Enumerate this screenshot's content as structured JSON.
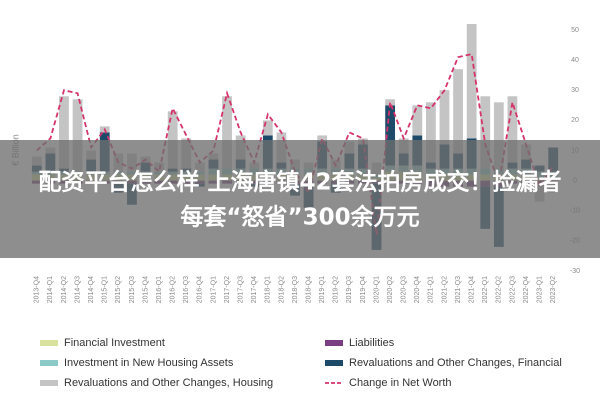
{
  "chart_data": {
    "type": "bar",
    "y_label": "€ Billion",
    "categories": [
      "2013-Q4",
      "2014-Q1",
      "2014-Q2",
      "2014-Q3",
      "2014-Q4",
      "2015-Q1",
      "2015-Q2",
      "2015-Q3",
      "2015-Q4",
      "2016-Q1",
      "2016-Q2",
      "2016-Q3",
      "2016-Q4",
      "2017-Q1",
      "2017-Q2",
      "2017-Q3",
      "2017-Q4",
      "2018-Q1",
      "2018-Q2",
      "2018-Q3",
      "2018-Q4",
      "2019-Q1",
      "2019-Q2",
      "2019-Q3",
      "2019-Q4",
      "2020-Q1",
      "2020-Q2",
      "2020-Q3",
      "2020-Q4",
      "2021-Q1",
      "2021-Q2",
      "2021-Q3",
      "2021-Q4",
      "2022-Q1",
      "2022-Q2",
      "2022-Q3",
      "2022-Q4",
      "2023-Q1",
      "2023-Q2"
    ],
    "series": [
      {
        "name": "Financial Investment",
        "color": "#d8e29c",
        "type": "bar",
        "values": [
          2,
          2,
          2,
          2,
          2,
          2,
          2,
          2,
          2,
          2,
          2,
          2,
          2,
          2,
          2,
          2,
          2,
          2,
          2,
          2,
          2,
          2,
          2,
          2,
          2,
          1,
          3,
          3,
          3,
          2,
          2,
          2,
          2,
          2,
          2,
          2,
          2,
          1,
          1
        ]
      },
      {
        "name": "Liabilities",
        "color": "#7a3f82",
        "type": "bar",
        "values": [
          -1,
          -1,
          -1,
          -1,
          -1,
          -1,
          -1,
          -1,
          -1,
          -1,
          -1,
          -1,
          -1,
          -1,
          -1,
          -1,
          -1,
          -1,
          -1,
          -1,
          -1,
          -1,
          -1,
          -1,
          -1,
          -1,
          -1,
          -1,
          -1,
          -2,
          -2,
          -2,
          -2,
          -2,
          -2,
          -1,
          -1,
          -1,
          -1
        ]
      },
      {
        "name": "Investment in New Housing Assets",
        "color": "#8ccac7",
        "type": "bar",
        "values": [
          1,
          1,
          1,
          1,
          1,
          1,
          1,
          1,
          1,
          1,
          1,
          1,
          1,
          2,
          2,
          2,
          2,
          2,
          2,
          2,
          2,
          2,
          2,
          2,
          2,
          1,
          2,
          2,
          2,
          2,
          2,
          2,
          2,
          2,
          2,
          2,
          2,
          2,
          2
        ]
      },
      {
        "name": "Revaluations and Other Changes, Financial",
        "color": "#1c4a68",
        "type": "bar",
        "values": [
          2,
          6,
          1,
          0,
          4,
          13,
          -3,
          -7,
          3,
          0,
          1,
          1,
          -1,
          3,
          0,
          3,
          -1,
          11,
          2,
          -4,
          -8,
          9,
          -3,
          5,
          8,
          -22,
          20,
          4,
          10,
          2,
          8,
          5,
          10,
          -14,
          -20,
          2,
          3,
          2,
          8
        ]
      },
      {
        "name": "Revaluations and Other Changes, Housing",
        "color": "#c4c4c4",
        "type": "bar",
        "values": [
          3,
          2,
          24,
          24,
          3,
          2,
          6,
          6,
          2,
          3,
          19,
          10,
          3,
          2,
          24,
          8,
          2,
          5,
          10,
          3,
          2,
          2,
          3,
          4,
          2,
          4,
          2,
          5,
          10,
          20,
          18,
          28,
          38,
          24,
          22,
          22,
          5,
          -6,
          -3
        ]
      },
      {
        "name": "Change in Net Worth",
        "color": "#d6336c",
        "type": "line",
        "values": [
          10,
          14,
          30,
          29,
          11,
          17,
          6,
          4,
          7,
          3,
          24,
          15,
          6,
          10,
          29,
          16,
          6,
          22,
          16,
          3,
          -4,
          14,
          5,
          16,
          14,
          -18,
          26,
          14,
          25,
          24,
          30,
          41,
          42,
          12,
          -1,
          26,
          12,
          -2,
          5
        ]
      }
    ],
    "ylim": [
      -30,
      50
    ],
    "yticks": [
      -30,
      -20,
      -10,
      0,
      10,
      20,
      30,
      40,
      50
    ],
    "grid": false
  },
  "overlay": {
    "lines": [
      "配资平台怎么样 上海唐镇42套法拍房成交！捡漏者",
      "每套“怒省”300余万元"
    ]
  }
}
